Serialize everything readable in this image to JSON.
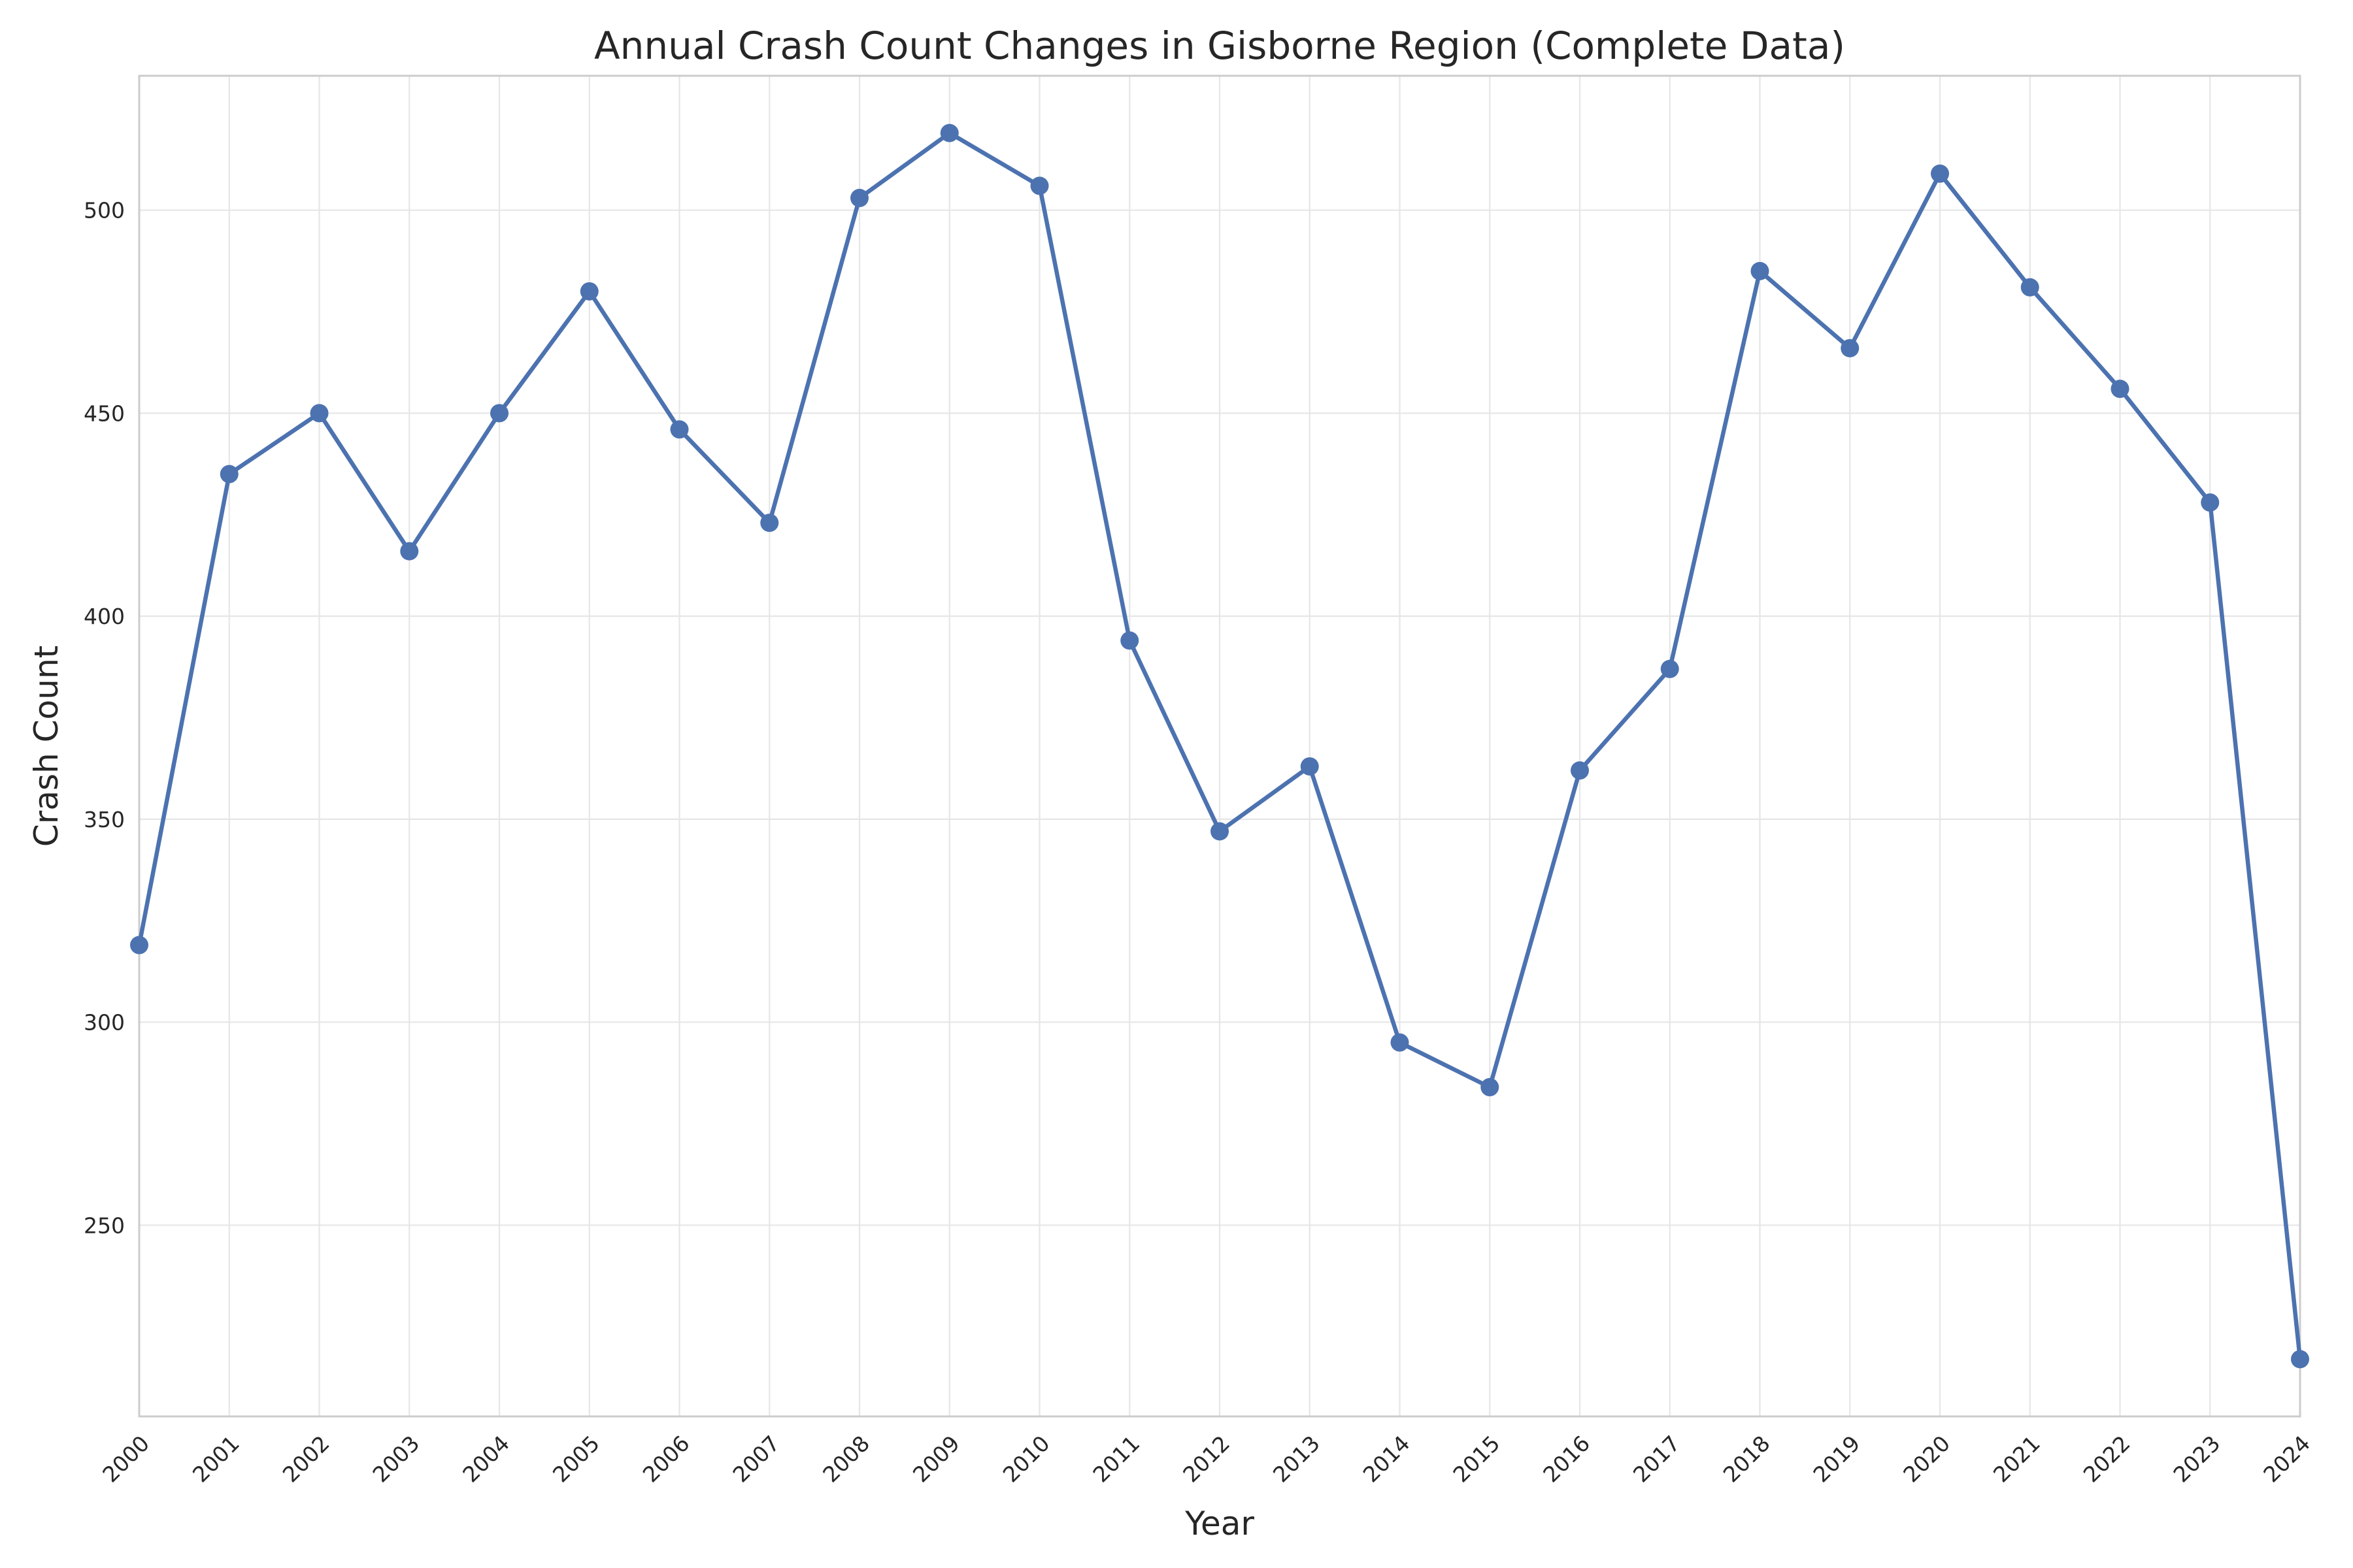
{
  "chart_data": {
    "type": "line",
    "title": "Annual Crash Count Changes in Gisborne Region (Complete Data)",
    "xlabel": "Year",
    "ylabel": "Crash Count",
    "x": [
      2000,
      2001,
      2002,
      2003,
      2004,
      2005,
      2006,
      2007,
      2008,
      2009,
      2010,
      2011,
      2012,
      2013,
      2014,
      2015,
      2016,
      2017,
      2018,
      2019,
      2020,
      2021,
      2022,
      2023,
      2024
    ],
    "x_tick_labels": [
      "2000",
      "2001",
      "2002",
      "2003",
      "2004",
      "2005",
      "2006",
      "2007",
      "2008",
      "2009",
      "2010",
      "2011",
      "2012",
      "2013",
      "2014",
      "2015",
      "2016",
      "2017",
      "2018",
      "2019",
      "2020",
      "2021",
      "2022",
      "2023",
      "2024"
    ],
    "xlim": [
      2000,
      2024
    ],
    "y_ticks": [
      250,
      300,
      350,
      400,
      450,
      500
    ],
    "y_tick_labels": [
      "250",
      "300",
      "350",
      "400",
      "450",
      "500"
    ],
    "ylim": [
      202.9,
      533.1
    ],
    "series": [
      {
        "values": [
          319,
          435,
          450,
          416,
          450,
          480,
          446,
          423,
          503,
          519,
          506,
          394,
          347,
          363,
          295,
          284,
          362,
          387,
          485,
          466,
          509,
          481,
          456,
          428,
          217
        ],
        "color": "#4c72b0",
        "marker": "circle"
      }
    ],
    "grid": true,
    "legend": "none",
    "x_tick_rotation": 45
  }
}
